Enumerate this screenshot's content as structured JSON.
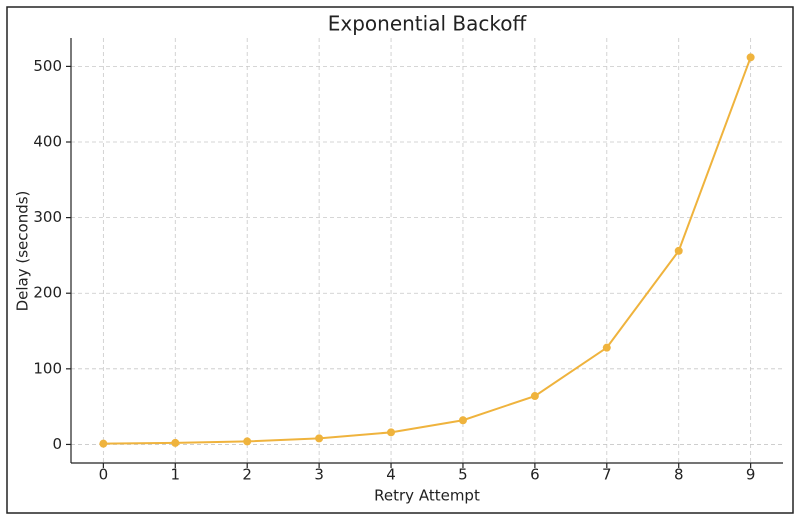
{
  "chart_data": {
    "type": "line",
    "title": "Exponential Backoff",
    "x_label": "Retry Attempt",
    "y_label": "Delay (seconds)",
    "x": [
      0,
      1,
      2,
      3,
      4,
      5,
      6,
      7,
      8,
      9
    ],
    "series": [
      {
        "color": "#efb33d",
        "values": [
          1,
          2,
          4,
          8,
          16,
          32,
          64,
          128,
          256,
          512
        ]
      }
    ],
    "xlim": [
      -0.45,
      9.45
    ],
    "ylim": [
      -24.55,
      537.55
    ],
    "xticks": [
      0,
      1,
      2,
      3,
      4,
      5,
      6,
      7,
      8,
      9
    ],
    "yticks": [
      0,
      100,
      200,
      300,
      400,
      500
    ],
    "grid": true,
    "markers": true
  }
}
